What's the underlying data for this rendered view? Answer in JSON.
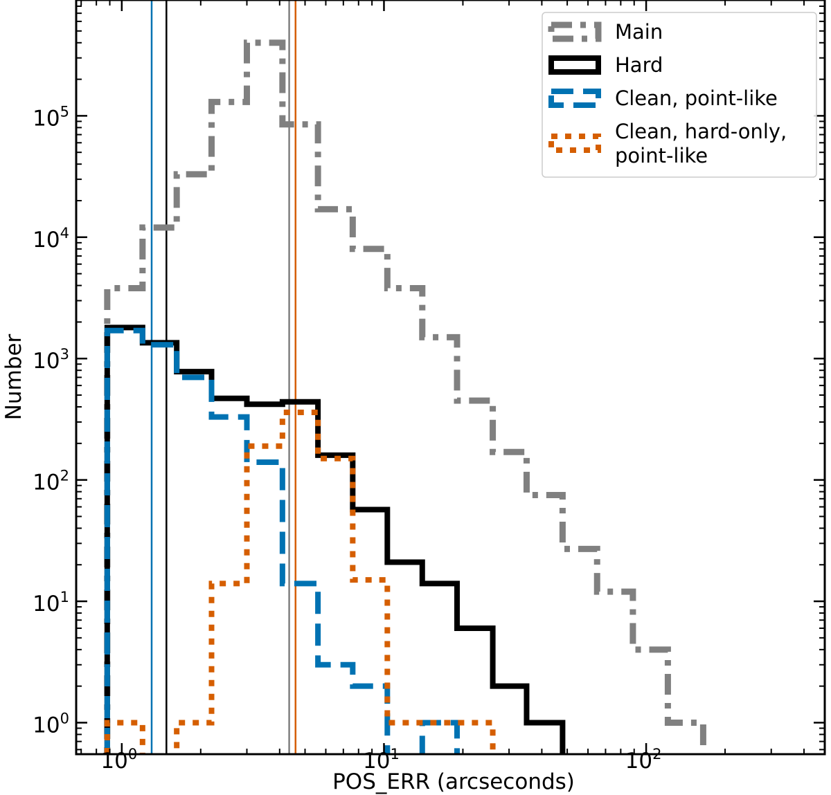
{
  "chart_data": {
    "type": "histogram",
    "xscale": "log",
    "yscale": "log",
    "xlabel": "POS_ERR (arcseconds)",
    "ylabel": "Number",
    "xlim": [
      0.67,
      480
    ],
    "ylim": [
      0.55,
      900000
    ],
    "x_ticks": [
      {
        "value": 1,
        "base": "10",
        "exp": "0"
      },
      {
        "value": 10,
        "base": "10",
        "exp": "1"
      },
      {
        "value": 100,
        "base": "10",
        "exp": "2"
      }
    ],
    "y_ticks": [
      {
        "value": 1,
        "base": "10",
        "exp": "0"
      },
      {
        "value": 10,
        "base": "10",
        "exp": "1"
      },
      {
        "value": 100,
        "base": "10",
        "exp": "2"
      },
      {
        "value": 1000,
        "base": "10",
        "exp": "3"
      },
      {
        "value": 10000,
        "base": "10",
        "exp": "4"
      },
      {
        "value": 100000,
        "base": "10",
        "exp": "5"
      }
    ],
    "bin_edges": [
      0.88,
      1.2,
      1.62,
      2.2,
      3.0,
      4.1,
      5.6,
      7.6,
      10.3,
      14.0,
      19.0,
      26.0,
      35.0,
      48.0,
      65.0,
      89.0,
      121.0,
      165.0,
      225.0
    ],
    "legend_position": "upper right",
    "series": [
      {
        "name": "Main",
        "color": "#808080",
        "style": "dashdot",
        "values": [
          3800,
          12000,
          33000,
          130000,
          400000,
          85000,
          17000,
          8000,
          3800,
          1500,
          450,
          170,
          75,
          27,
          12,
          4,
          1,
          0
        ]
      },
      {
        "name": "Hard",
        "color": "#000000",
        "style": "solid",
        "values": [
          1800,
          1350,
          780,
          470,
          420,
          440,
          160,
          57,
          21,
          14,
          6,
          2,
          1,
          0,
          0,
          0,
          0,
          0
        ]
      },
      {
        "name": "Clean, point-like",
        "color": "#0072b2",
        "style": "dashed",
        "values": [
          1700,
          1300,
          700,
          330,
          140,
          14,
          3,
          2,
          0,
          1,
          0,
          0,
          0,
          0,
          0,
          0,
          0,
          0
        ]
      },
      {
        "name": "Clean, hard-only, point-like",
        "name_lines": [
          "Clean, hard-only,",
          "point-like"
        ],
        "color": "#d55e00",
        "style": "dotted",
        "values": [
          1,
          0,
          1,
          14,
          190,
          360,
          150,
          15,
          1,
          1,
          1,
          0,
          0,
          0,
          0,
          0,
          0,
          0
        ]
      }
    ],
    "vlines": [
      {
        "x": 1.3,
        "color": "#0072b2"
      },
      {
        "x": 1.48,
        "color": "#000000"
      },
      {
        "x": 4.35,
        "color": "#808080"
      },
      {
        "x": 4.6,
        "color": "#d55e00"
      }
    ]
  }
}
